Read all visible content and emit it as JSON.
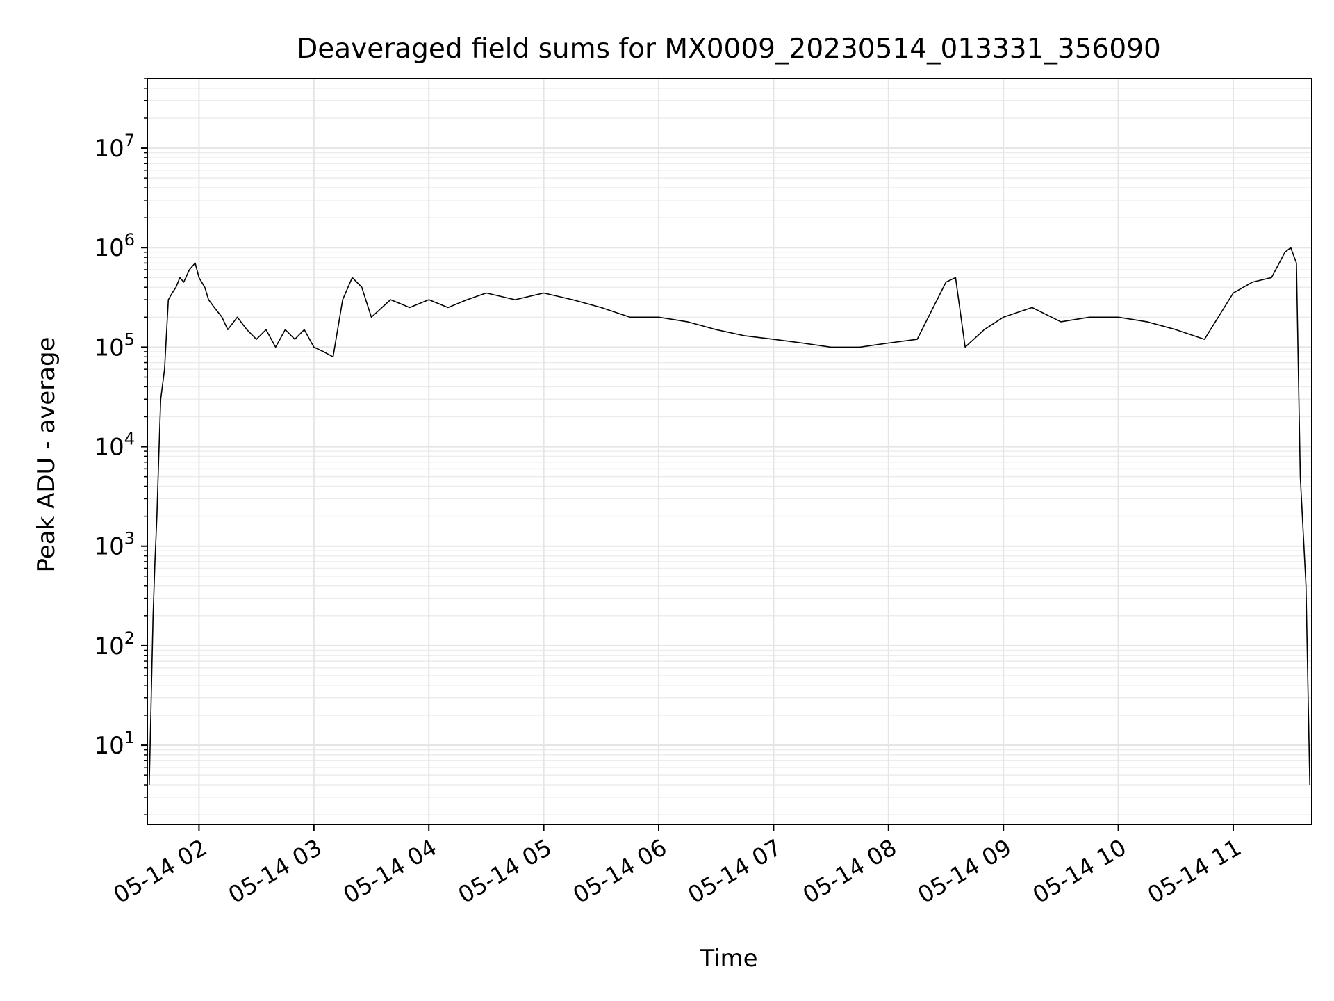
{
  "chart_data": {
    "type": "line",
    "title": "Deaveraged field sums for MX0009_20230514_013331_356090",
    "xlabel": "Time",
    "ylabel": "Peak ADU - average",
    "xscale": "time",
    "yscale": "log",
    "xlim": [
      "05-14 01:33",
      "05-14 11:41"
    ],
    "ylim": [
      1.6,
      50000000
    ],
    "x_ticks": [
      "05-14 02",
      "05-14 03",
      "05-14 04",
      "05-14 05",
      "05-14 06",
      "05-14 07",
      "05-14 08",
      "05-14 09",
      "05-14 10",
      "05-14 11"
    ],
    "y_ticks": [
      {
        "value": 10,
        "base": "10",
        "exp": "1"
      },
      {
        "value": 100,
        "base": "10",
        "exp": "2"
      },
      {
        "value": 1000,
        "base": "10",
        "exp": "3"
      },
      {
        "value": 10000,
        "base": "10",
        "exp": "4"
      },
      {
        "value": 100000,
        "base": "10",
        "exp": "5"
      },
      {
        "value": 1000000,
        "base": "10",
        "exp": "6"
      },
      {
        "value": 10000000,
        "base": "10",
        "exp": "7"
      }
    ],
    "grid": true,
    "legend": "none",
    "line_color": "#000000",
    "grid_color": "#e5e5e5",
    "series": [
      {
        "x": [
          "05-14 01:34",
          "05-14 01:36",
          "05-14 01:37",
          "05-14 01:38",
          "05-14 01:39",
          "05-14 01:40",
          "05-14 01:42",
          "05-14 01:44",
          "05-14 01:46",
          "05-14 01:48",
          "05-14 01:50",
          "05-14 01:52",
          "05-14 01:55",
          "05-14 01:58",
          "05-14 02:00",
          "05-14 02:03",
          "05-14 02:05",
          "05-14 02:08",
          "05-14 02:12",
          "05-14 02:15",
          "05-14 02:20",
          "05-14 02:25",
          "05-14 02:30",
          "05-14 02:35",
          "05-14 02:40",
          "05-14 02:45",
          "05-14 02:50",
          "05-14 02:55",
          "05-14 03:00",
          "05-14 03:05",
          "05-14 03:10",
          "05-14 03:15",
          "05-14 03:20",
          "05-14 03:25",
          "05-14 03:30",
          "05-14 03:40",
          "05-14 03:50",
          "05-14 04:00",
          "05-14 04:10",
          "05-14 04:20",
          "05-14 04:30",
          "05-14 04:45",
          "05-14 05:00",
          "05-14 05:15",
          "05-14 05:30",
          "05-14 05:45",
          "05-14 06:00",
          "05-14 06:15",
          "05-14 06:30",
          "05-14 06:45",
          "05-14 07:00",
          "05-14 07:15",
          "05-14 07:30",
          "05-14 07:45",
          "05-14 08:00",
          "05-14 08:15",
          "05-14 08:30",
          "05-14 08:35",
          "05-14 08:40",
          "05-14 08:50",
          "05-14 09:00",
          "05-14 09:15",
          "05-14 09:30",
          "05-14 09:45",
          "05-14 10:00",
          "05-14 10:15",
          "05-14 10:30",
          "05-14 10:45",
          "05-14 11:00",
          "05-14 11:10",
          "05-14 11:20",
          "05-14 11:27",
          "05-14 11:30",
          "05-14 11:33",
          "05-14 11:35",
          "05-14 11:38",
          "05-14 11:40"
        ],
        "y": [
          4,
          200,
          700,
          2000,
          8000,
          30000,
          60000,
          300000,
          350000,
          400000,
          500000,
          450000,
          600000,
          700000,
          500000,
          400000,
          300000,
          250000,
          200000,
          150000,
          200000,
          150000,
          120000,
          150000,
          100000,
          150000,
          120000,
          150000,
          100000,
          90000,
          80000,
          300000,
          500000,
          400000,
          200000,
          300000,
          250000,
          300000,
          250000,
          300000,
          350000,
          300000,
          350000,
          300000,
          250000,
          200000,
          200000,
          180000,
          150000,
          130000,
          120000,
          110000,
          100000,
          100000,
          110000,
          120000,
          450000,
          500000,
          100000,
          150000,
          200000,
          250000,
          180000,
          200000,
          200000,
          180000,
          150000,
          120000,
          350000,
          450000,
          500000,
          900000,
          1000000,
          700000,
          5000,
          400,
          4
        ]
      }
    ]
  }
}
